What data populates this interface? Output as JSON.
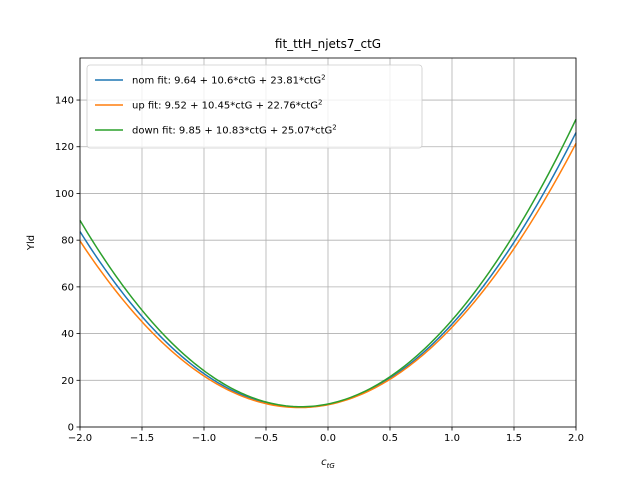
{
  "chart_data": {
    "type": "line",
    "title": "fit_ttH_njets7_ctG",
    "xlabel": "c_tG",
    "xlabel_main": "c",
    "xlabel_sub": "tG",
    "ylabel": "Yld",
    "xlim": [
      -2.0,
      2.0
    ],
    "ylim": [
      0,
      158
    ],
    "xticks": [
      -2.0,
      -1.5,
      -1.0,
      -0.5,
      0.0,
      0.5,
      1.0,
      1.5,
      2.0
    ],
    "xtick_labels": [
      "−2.0",
      "−1.5",
      "−1.0",
      "−0.5",
      "0.0",
      "0.5",
      "1.0",
      "1.5",
      "2.0"
    ],
    "yticks": [
      0,
      20,
      40,
      60,
      80,
      100,
      120,
      140
    ],
    "ytick_labels": [
      "0",
      "20",
      "40",
      "60",
      "80",
      "100",
      "120",
      "140"
    ],
    "grid": true,
    "legend_position": "top-left",
    "series": [
      {
        "name": "nom fit: 9.64 + 10.6*ctG + 23.81*ctG^2",
        "legend_main": "nom fit: 9.64 + 10.6*ctG + 23.81*ctG",
        "legend_sup": "2",
        "color": "#1f77b4",
        "coefficients": [
          9.64,
          10.6,
          23.81
        ]
      },
      {
        "name": "up fit: 9.52 + 10.45*ctG + 22.76*ctG^2",
        "legend_main": "up fit: 9.52 + 10.45*ctG + 22.76*ctG",
        "legend_sup": "2",
        "color": "#ff7f0e",
        "coefficients": [
          9.52,
          10.45,
          22.76
        ]
      },
      {
        "name": "down fit: 9.85 + 10.83*ctG + 25.07*ctG^2",
        "legend_main": "down fit: 9.85 + 10.83*ctG + 25.07*ctG",
        "legend_sup": "2",
        "color": "#2ca02c",
        "coefficients": [
          9.85,
          10.83,
          25.07
        ]
      }
    ]
  }
}
